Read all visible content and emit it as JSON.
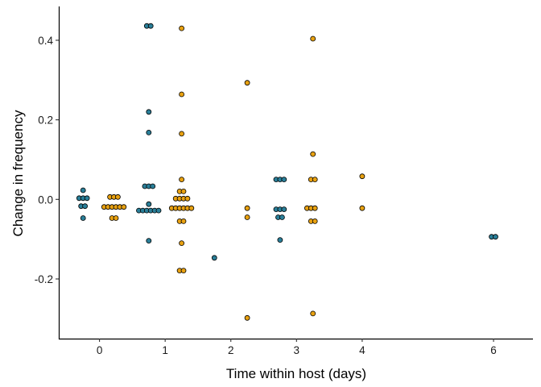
{
  "chart_data": {
    "type": "scatter",
    "style": "dotplot",
    "title": "",
    "xlabel": "Time within host (days)",
    "ylabel": "Change in frequency",
    "xlim": [
      -0.62,
      6.6
    ],
    "ylim": [
      -0.35,
      0.485
    ],
    "xticks": [
      0,
      1,
      2,
      3,
      4,
      6
    ],
    "xtick_labels": [
      "0",
      "1",
      "2",
      "3",
      "4",
      "6"
    ],
    "yticks": [
      -0.2,
      0.0,
      0.2,
      0.4
    ],
    "ytick_labels": [
      "-0.2",
      "0.0",
      "0.2",
      "0.4"
    ],
    "grid": false,
    "legend": "none",
    "colors": {
      "teal": "#2a7f99",
      "gold": "#e8a111"
    },
    "series": [
      {
        "color": "teal",
        "points": [
          {
            "x": -0.25,
            "y": 0.023
          },
          {
            "x": -0.31,
            "y": 0.003
          },
          {
            "x": -0.25,
            "y": 0.003
          },
          {
            "x": -0.19,
            "y": 0.003
          },
          {
            "x": -0.28,
            "y": -0.017
          },
          {
            "x": -0.22,
            "y": -0.017
          },
          {
            "x": -0.25,
            "y": -0.047
          },
          {
            "x": 0.72,
            "y": 0.436
          },
          {
            "x": 0.78,
            "y": 0.436
          },
          {
            "x": 0.75,
            "y": 0.22
          },
          {
            "x": 0.75,
            "y": 0.168
          },
          {
            "x": 0.69,
            "y": 0.033
          },
          {
            "x": 0.75,
            "y": 0.033
          },
          {
            "x": 0.81,
            "y": 0.033
          },
          {
            "x": 0.75,
            "y": -0.012
          },
          {
            "x": 0.6,
            "y": -0.028
          },
          {
            "x": 0.66,
            "y": -0.028
          },
          {
            "x": 0.72,
            "y": -0.028
          },
          {
            "x": 0.78,
            "y": -0.028
          },
          {
            "x": 0.84,
            "y": -0.028
          },
          {
            "x": 0.9,
            "y": -0.028
          },
          {
            "x": 0.75,
            "y": -0.104
          },
          {
            "x": 1.75,
            "y": -0.147
          },
          {
            "x": 2.69,
            "y": 0.05
          },
          {
            "x": 2.75,
            "y": 0.05
          },
          {
            "x": 2.81,
            "y": 0.05
          },
          {
            "x": 2.69,
            "y": -0.025
          },
          {
            "x": 2.75,
            "y": -0.025
          },
          {
            "x": 2.81,
            "y": -0.025
          },
          {
            "x": 2.72,
            "y": -0.045
          },
          {
            "x": 2.78,
            "y": -0.045
          },
          {
            "x": 2.75,
            "y": -0.102
          },
          {
            "x": 5.97,
            "y": -0.094
          },
          {
            "x": 6.03,
            "y": -0.094
          }
        ]
      },
      {
        "color": "gold",
        "points": [
          {
            "x": 0.16,
            "y": 0.006
          },
          {
            "x": 0.22,
            "y": 0.006
          },
          {
            "x": 0.28,
            "y": 0.006
          },
          {
            "x": 0.07,
            "y": -0.019
          },
          {
            "x": 0.13,
            "y": -0.019
          },
          {
            "x": 0.19,
            "y": -0.019
          },
          {
            "x": 0.25,
            "y": -0.019
          },
          {
            "x": 0.31,
            "y": -0.019
          },
          {
            "x": 0.37,
            "y": -0.019
          },
          {
            "x": 0.19,
            "y": -0.047
          },
          {
            "x": 0.25,
            "y": -0.047
          },
          {
            "x": 1.25,
            "y": 0.43
          },
          {
            "x": 1.25,
            "y": 0.264
          },
          {
            "x": 1.25,
            "y": 0.165
          },
          {
            "x": 1.25,
            "y": 0.05
          },
          {
            "x": 1.22,
            "y": 0.02
          },
          {
            "x": 1.28,
            "y": 0.02
          },
          {
            "x": 1.16,
            "y": 0.002
          },
          {
            "x": 1.22,
            "y": 0.002
          },
          {
            "x": 1.28,
            "y": 0.002
          },
          {
            "x": 1.34,
            "y": 0.002
          },
          {
            "x": 1.1,
            "y": -0.022
          },
          {
            "x": 1.16,
            "y": -0.022
          },
          {
            "x": 1.22,
            "y": -0.022
          },
          {
            "x": 1.28,
            "y": -0.022
          },
          {
            "x": 1.34,
            "y": -0.022
          },
          {
            "x": 1.4,
            "y": -0.022
          },
          {
            "x": 1.22,
            "y": -0.055
          },
          {
            "x": 1.28,
            "y": -0.055
          },
          {
            "x": 1.25,
            "y": -0.11
          },
          {
            "x": 1.22,
            "y": -0.179
          },
          {
            "x": 1.28,
            "y": -0.179
          },
          {
            "x": 2.25,
            "y": 0.293
          },
          {
            "x": 2.25,
            "y": -0.022
          },
          {
            "x": 2.25,
            "y": -0.045
          },
          {
            "x": 2.25,
            "y": -0.298
          },
          {
            "x": 3.25,
            "y": 0.404
          },
          {
            "x": 3.25,
            "y": 0.114
          },
          {
            "x": 3.22,
            "y": 0.05
          },
          {
            "x": 3.28,
            "y": 0.05
          },
          {
            "x": 3.16,
            "y": -0.022
          },
          {
            "x": 3.22,
            "y": -0.022
          },
          {
            "x": 3.28,
            "y": -0.022
          },
          {
            "x": 3.22,
            "y": -0.055
          },
          {
            "x": 3.28,
            "y": -0.055
          },
          {
            "x": 3.25,
            "y": -0.287
          },
          {
            "x": 4.0,
            "y": 0.058
          },
          {
            "x": 4.0,
            "y": -0.022
          }
        ]
      }
    ]
  }
}
